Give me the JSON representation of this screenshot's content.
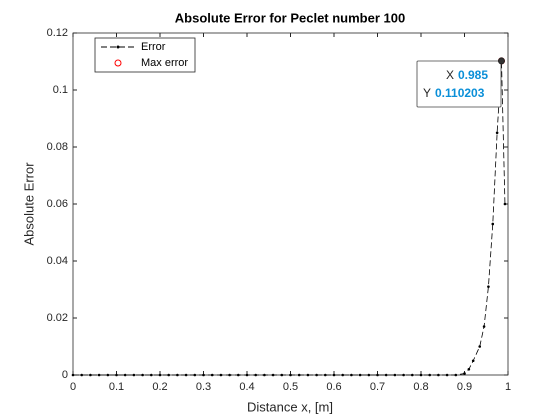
{
  "chart_data": {
    "type": "line",
    "title": "Absolute Error for Peclet number 100",
    "xlabel": "Distance x, [m]",
    "ylabel": "Absolute Error",
    "xlim": [
      0,
      1
    ],
    "ylim": [
      0,
      0.12
    ],
    "xticks": [
      0,
      0.1,
      0.2,
      0.3,
      0.4,
      0.5,
      0.6,
      0.7,
      0.8,
      0.9,
      1
    ],
    "yticks": [
      0,
      0.02,
      0.04,
      0.06,
      0.08,
      0.1,
      0.12
    ],
    "legend": "upper left",
    "series": [
      {
        "name": "Error",
        "color": "#000000",
        "line": "dashed",
        "marker": "dot",
        "x": [
          0,
          0.02,
          0.04,
          0.06,
          0.08,
          0.1,
          0.12,
          0.14,
          0.16,
          0.18,
          0.2,
          0.22,
          0.24,
          0.26,
          0.28,
          0.3,
          0.32,
          0.34,
          0.36,
          0.38,
          0.4,
          0.42,
          0.44,
          0.46,
          0.48,
          0.5,
          0.52,
          0.54,
          0.56,
          0.58,
          0.6,
          0.62,
          0.64,
          0.66,
          0.68,
          0.7,
          0.72,
          0.74,
          0.76,
          0.78,
          0.8,
          0.82,
          0.84,
          0.86,
          0.88,
          0.9,
          0.91,
          0.92,
          0.935,
          0.945,
          0.955,
          0.965,
          0.975,
          0.985,
          0.993
        ],
        "values": [
          0,
          0,
          0,
          0,
          0,
          0,
          0,
          0,
          0,
          0,
          0,
          0,
          0,
          0,
          0,
          0,
          0,
          0,
          0,
          0,
          0,
          0,
          0,
          0,
          0,
          0,
          0,
          0,
          0,
          0,
          0,
          0,
          0,
          0,
          0,
          0,
          0,
          0,
          0,
          0,
          0,
          0,
          0,
          0,
          0,
          0.0005,
          0.002,
          0.005,
          0.01,
          0.017,
          0.031,
          0.053,
          0.085,
          0.110203,
          0.06
        ]
      },
      {
        "name": "Max error",
        "color": "#ff0000",
        "line": "none",
        "marker": "circle",
        "x": [
          0.985
        ],
        "values": [
          0.110203
        ]
      }
    ],
    "datatip": {
      "x_label": "X",
      "y_label": "Y"
    }
  }
}
